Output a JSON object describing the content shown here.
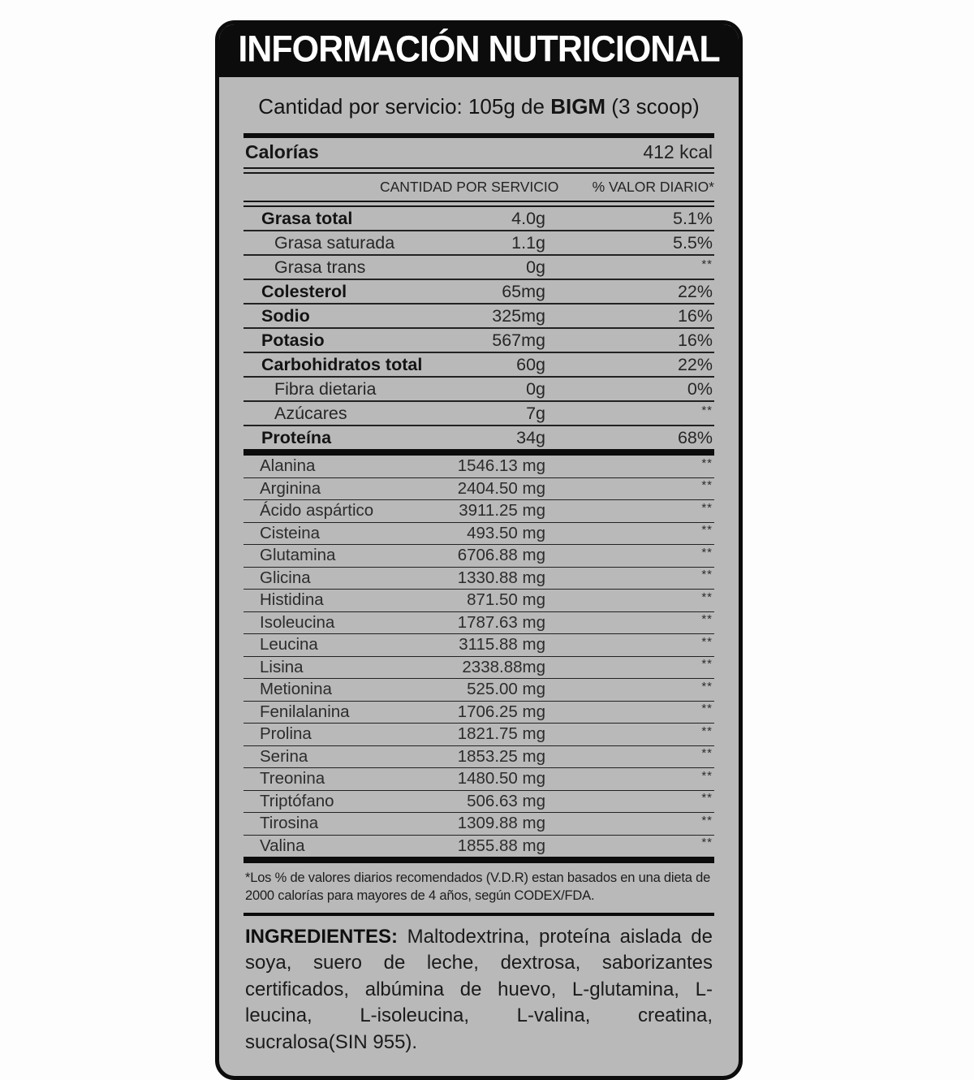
{
  "label": {
    "title": "INFORMACIÓN NUTRICIONAL",
    "serving": {
      "prefix": "Cantidad por servicio: 105g de ",
      "brand": "BIGM",
      "suffix": " (3 scoop)"
    },
    "calories": {
      "label": "Calorías",
      "value": "412 kcal"
    },
    "columns": {
      "amount": "CANTIDAD POR SERVICIO",
      "daily_value": "% VALOR DIARIO*"
    },
    "nutrients": [
      {
        "name": "Grasa total",
        "amount": "4.0g",
        "dv": "5.1%",
        "bold": true,
        "indent": false
      },
      {
        "name": "Grasa saturada",
        "amount": "1.1g",
        "dv": "5.5%",
        "bold": false,
        "indent": true
      },
      {
        "name": "Grasa trans",
        "amount": "0g",
        "dv": "**",
        "bold": false,
        "indent": true
      },
      {
        "name": "Colesterol",
        "amount": "65mg",
        "dv": "22%",
        "bold": true,
        "indent": false
      },
      {
        "name": "Sodio",
        "amount": "325mg",
        "dv": "16%",
        "bold": true,
        "indent": false
      },
      {
        "name": "Potasio",
        "amount": "567mg",
        "dv": "16%",
        "bold": true,
        "indent": false
      },
      {
        "name": "Carbohidratos total",
        "amount": "60g",
        "dv": "22%",
        "bold": true,
        "indent": false
      },
      {
        "name": "Fibra dietaria",
        "amount": "0g",
        "dv": "0%",
        "bold": false,
        "indent": true
      },
      {
        "name": "Azúcares",
        "amount": "7g",
        "dv": "**",
        "bold": false,
        "indent": true
      },
      {
        "name": "Proteína",
        "amount": "34g",
        "dv": "68%",
        "bold": true,
        "indent": false
      }
    ],
    "amino_acids": [
      {
        "name": "Alanina",
        "amount": "1546.13 mg",
        "dv": "**"
      },
      {
        "name": "Arginina",
        "amount": "2404.50 mg",
        "dv": "**"
      },
      {
        "name": "Ácido aspártico",
        "amount": "3911.25 mg",
        "dv": "**"
      },
      {
        "name": "Cisteina",
        "amount": "493.50 mg",
        "dv": "**"
      },
      {
        "name": "Glutamina",
        "amount": "6706.88 mg",
        "dv": "**"
      },
      {
        "name": "Glicina",
        "amount": "1330.88 mg",
        "dv": "**"
      },
      {
        "name": "Histidina",
        "amount": "871.50 mg",
        "dv": "**"
      },
      {
        "name": "Isoleucina",
        "amount": "1787.63 mg",
        "dv": "**"
      },
      {
        "name": "Leucina",
        "amount": "3115.88 mg",
        "dv": "**"
      },
      {
        "name": "Lisina",
        "amount": "2338.88mg",
        "dv": "**"
      },
      {
        "name": "Metionina",
        "amount": "525.00 mg",
        "dv": "**"
      },
      {
        "name": "Fenilalanina",
        "amount": "1706.25 mg",
        "dv": "**"
      },
      {
        "name": "Prolina",
        "amount": "1821.75 mg",
        "dv": "**"
      },
      {
        "name": "Serina",
        "amount": "1853.25 mg",
        "dv": "**"
      },
      {
        "name": "Treonina",
        "amount": "1480.50 mg",
        "dv": "**"
      },
      {
        "name": "Triptófano",
        "amount": "506.63 mg",
        "dv": "**"
      },
      {
        "name": "Tirosina",
        "amount": "1309.88 mg",
        "dv": "**"
      },
      {
        "name": "Valina",
        "amount": "1855.88 mg",
        "dv": "**"
      }
    ],
    "footnote": "*Los % de valores diarios recomendados (V.D.R) estan basados en una dieta de 2000 calorías para mayores de 4 años, según CODEX/FDA.",
    "ingredients": {
      "label": "INGREDIENTES:",
      "text": " Maltodextrina, proteína aislada de soya, suero de leche, dextrosa, saborizantes certificados, albúmina de huevo, L-glutamina, L-leucina, L-isoleucina, L-valina, creatina, sucralosa(SIN 955)."
    },
    "colors": {
      "panel_background": "#b9b9b9",
      "band_background": "#0c0c0c",
      "band_text": "#ffffff",
      "text": "#161616"
    }
  }
}
